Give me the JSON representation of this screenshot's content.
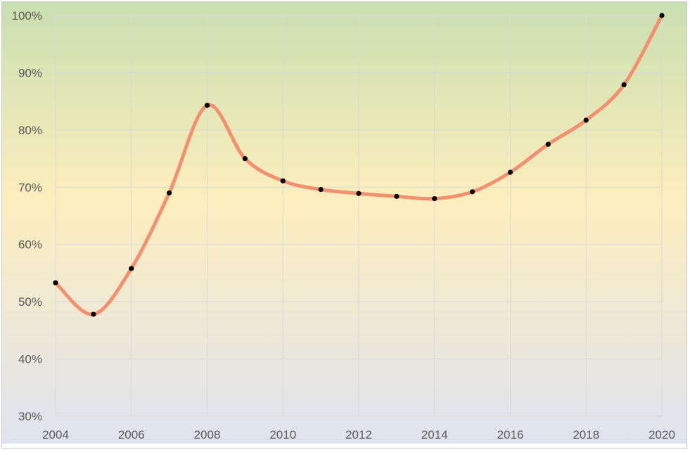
{
  "chart_data": {
    "type": "line",
    "title": "",
    "xlabel": "",
    "ylabel": "",
    "x": [
      2004,
      2005,
      2006,
      2007,
      2008,
      2009,
      2010,
      2011,
      2012,
      2013,
      2014,
      2015,
      2016,
      2017,
      2018,
      2019,
      2020
    ],
    "series": [
      {
        "values": [
          53.3,
          47.8,
          55.8,
          69.0,
          84.3,
          75.0,
          71.1,
          69.6,
          68.9,
          68.4,
          68.0,
          69.2,
          72.6,
          77.5,
          81.7,
          87.9,
          100.0
        ]
      }
    ],
    "xlim": [
      2004,
      2020
    ],
    "ylim": [
      30,
      100
    ],
    "x_ticks": [
      "2004",
      "2006",
      "2008",
      "2010",
      "2012",
      "2014",
      "2016",
      "2018",
      "2020"
    ],
    "y_ticks": [
      "30%",
      "40%",
      "50%",
      "60%",
      "70%",
      "80%",
      "90%",
      "100%"
    ],
    "grid": true,
    "line_color": "#f4906f",
    "marker_color": "#000000",
    "background_gradient": [
      "#c9dfb0",
      "#fdeebd",
      "#dfe3f0"
    ]
  }
}
